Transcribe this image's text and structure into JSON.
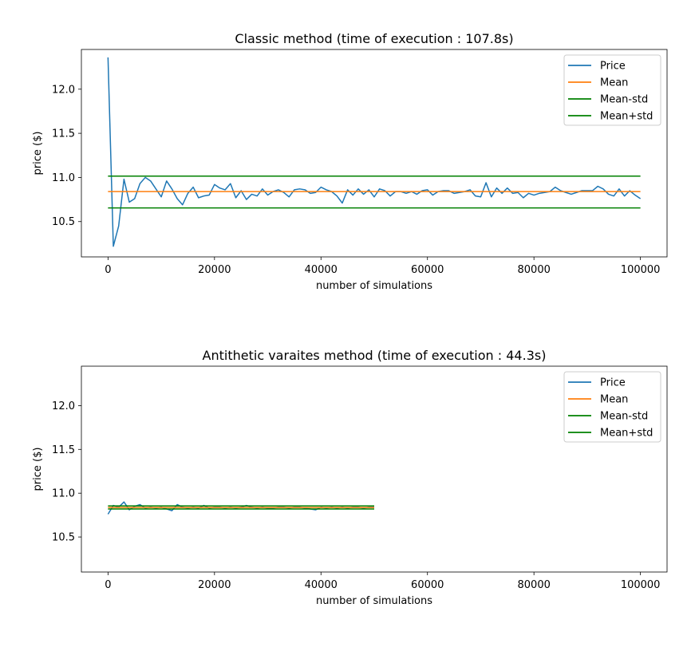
{
  "colors": {
    "price": "#1f77b4",
    "mean": "#ff7f0e",
    "std": "#008000",
    "axis": "#000000",
    "legend_border": "#cccccc"
  },
  "chart_data": [
    {
      "type": "line",
      "title": "Classic method (time of execution : 107.8s)",
      "xlabel": "number of simulations",
      "ylabel": "price ($)",
      "xlim": [
        -5000,
        105000
      ],
      "ylim": [
        10.1,
        12.45
      ],
      "xticks": [
        0,
        20000,
        40000,
        60000,
        80000,
        100000
      ],
      "xtick_labels": [
        "0",
        "20000",
        "40000",
        "60000",
        "80000",
        "100000"
      ],
      "yticks": [
        10.5,
        11.0,
        11.5,
        12.0
      ],
      "ytick_labels": [
        "10.5",
        "11.0",
        "11.5",
        "12.0"
      ],
      "legend": {
        "position": "top-right",
        "entries": [
          "Price",
          "Mean",
          "Mean-std",
          "Mean+std"
        ]
      },
      "series": [
        {
          "name": "Price",
          "x": [
            0,
            1000,
            2000,
            3000,
            4000,
            5000,
            6000,
            7000,
            8000,
            9000,
            10000,
            11000,
            12000,
            13000,
            14000,
            15000,
            16000,
            17000,
            18000,
            19000,
            20000,
            21000,
            22000,
            23000,
            24000,
            25000,
            26000,
            27000,
            28000,
            29000,
            30000,
            31000,
            32000,
            33000,
            34000,
            35000,
            36000,
            37000,
            38000,
            39000,
            40000,
            41000,
            42000,
            43000,
            44000,
            45000,
            46000,
            47000,
            48000,
            49000,
            50000,
            51000,
            52000,
            53000,
            54000,
            55000,
            56000,
            57000,
            58000,
            59000,
            60000,
            61000,
            62000,
            63000,
            64000,
            65000,
            66000,
            67000,
            68000,
            69000,
            70000,
            71000,
            72000,
            73000,
            74000,
            75000,
            76000,
            77000,
            78000,
            79000,
            80000,
            81000,
            82000,
            83000,
            84000,
            85000,
            86000,
            87000,
            88000,
            89000,
            90000,
            91000,
            92000,
            93000,
            94000,
            95000,
            96000,
            97000,
            98000,
            99000,
            100000
          ],
          "y": [
            12.36,
            10.22,
            10.45,
            10.98,
            10.72,
            10.76,
            10.93,
            11.0,
            10.96,
            10.87,
            10.78,
            10.96,
            10.87,
            10.76,
            10.69,
            10.82,
            10.89,
            10.77,
            10.79,
            10.8,
            10.92,
            10.88,
            10.86,
            10.93,
            10.77,
            10.85,
            10.75,
            10.81,
            10.79,
            10.87,
            10.8,
            10.84,
            10.86,
            10.83,
            10.78,
            10.86,
            10.87,
            10.86,
            10.82,
            10.83,
            10.89,
            10.86,
            10.84,
            10.79,
            10.71,
            10.86,
            10.8,
            10.87,
            10.81,
            10.86,
            10.78,
            10.87,
            10.85,
            10.79,
            10.84,
            10.84,
            10.82,
            10.84,
            10.81,
            10.85,
            10.86,
            10.8,
            10.84,
            10.85,
            10.85,
            10.82,
            10.83,
            10.84,
            10.86,
            10.79,
            10.78,
            10.94,
            10.78,
            10.88,
            10.82,
            10.88,
            10.82,
            10.83,
            10.77,
            10.82,
            10.8,
            10.82,
            10.83,
            10.84,
            10.89,
            10.85,
            10.83,
            10.81,
            10.83,
            10.85,
            10.85,
            10.85,
            10.9,
            10.87,
            10.81,
            10.79,
            10.87,
            10.79,
            10.85,
            10.8,
            10.76
          ]
        },
        {
          "name": "Mean",
          "x": [
            0,
            100000
          ],
          "y": [
            10.84,
            10.84
          ]
        },
        {
          "name": "Mean-std",
          "x": [
            0,
            100000
          ],
          "y": [
            10.655,
            10.655
          ]
        },
        {
          "name": "Mean+std",
          "x": [
            0,
            100000
          ],
          "y": [
            11.015,
            11.015
          ]
        }
      ]
    },
    {
      "type": "line",
      "title": "Antithetic varaites method (time of execution : 44.3s)",
      "xlabel": "number of simulations",
      "ylabel": "price ($)",
      "xlim": [
        -5000,
        105000
      ],
      "ylim": [
        10.1,
        12.45
      ],
      "xticks": [
        0,
        20000,
        40000,
        60000,
        80000,
        100000
      ],
      "xtick_labels": [
        "0",
        "20000",
        "40000",
        "60000",
        "80000",
        "100000"
      ],
      "yticks": [
        10.5,
        11.0,
        11.5,
        12.0
      ],
      "ytick_labels": [
        "10.5",
        "11.0",
        "11.5",
        "12.0"
      ],
      "legend": {
        "position": "top-right",
        "entries": [
          "Price",
          "Mean",
          "Mean-std",
          "Mean+std"
        ]
      },
      "series": [
        {
          "name": "Price",
          "x": [
            0,
            1000,
            2000,
            3000,
            4000,
            5000,
            6000,
            7000,
            8000,
            9000,
            10000,
            11000,
            12000,
            13000,
            14000,
            15000,
            16000,
            17000,
            18000,
            19000,
            20000,
            21000,
            22000,
            23000,
            24000,
            25000,
            26000,
            27000,
            28000,
            29000,
            30000,
            31000,
            32000,
            33000,
            34000,
            35000,
            36000,
            37000,
            38000,
            39000,
            40000,
            41000,
            42000,
            43000,
            44000,
            45000,
            46000,
            47000,
            48000,
            49000,
            50000
          ],
          "y": [
            10.76,
            10.86,
            10.84,
            10.9,
            10.81,
            10.85,
            10.87,
            10.83,
            10.84,
            10.83,
            10.84,
            10.82,
            10.8,
            10.87,
            10.84,
            10.83,
            10.84,
            10.83,
            10.86,
            10.83,
            10.84,
            10.84,
            10.83,
            10.84,
            10.83,
            10.84,
            10.86,
            10.84,
            10.83,
            10.84,
            10.83,
            10.83,
            10.84,
            10.84,
            10.83,
            10.84,
            10.84,
            10.83,
            10.82,
            10.81,
            10.84,
            10.83,
            10.84,
            10.83,
            10.84,
            10.83,
            10.84,
            10.84,
            10.83,
            10.84,
            10.84
          ]
        },
        {
          "name": "Mean",
          "x": [
            0,
            50000
          ],
          "y": [
            10.837,
            10.837
          ]
        },
        {
          "name": "Mean-std",
          "x": [
            0,
            50000
          ],
          "y": [
            10.82,
            10.82
          ]
        },
        {
          "name": "Mean+std",
          "x": [
            0,
            50000
          ],
          "y": [
            10.855,
            10.855
          ]
        }
      ]
    }
  ]
}
